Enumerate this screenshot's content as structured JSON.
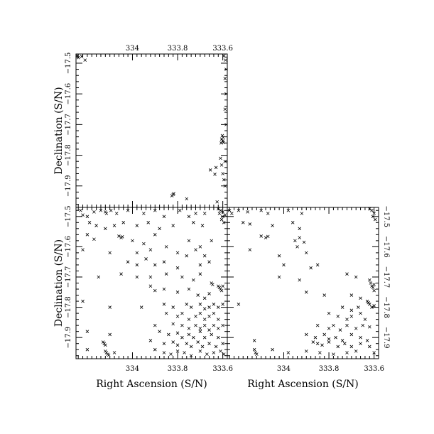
{
  "chart_data": [
    {
      "type": "scatter",
      "panel": "top-left",
      "xlabel": "",
      "ylabel": "Declination (S/N)",
      "x_axis_side": "top",
      "y_axis_side": "left",
      "xlim": [
        334.25,
        333.58
      ],
      "ylim": [
        -17.97,
        -17.47
      ],
      "xticks": [
        334,
        333.8,
        333.6
      ],
      "xtick_labels": [
        "334",
        "333.8",
        "333.6"
      ],
      "yticks": [
        -17.9,
        -17.8,
        -17.7,
        -17.6,
        -17.5
      ],
      "ytick_labels": [
        "−17.9",
        "−17.8",
        "−17.7",
        "−17.6",
        "−17.5"
      ],
      "marker": "x",
      "points": [
        [
          334.245,
          -17.475
        ],
        [
          334.24,
          -17.482
        ],
        [
          334.225,
          -17.478
        ],
        [
          334.21,
          -17.49
        ],
        [
          333.595,
          -17.476
        ],
        [
          333.588,
          -17.49
        ],
        [
          333.585,
          -17.52
        ],
        [
          333.59,
          -17.55
        ],
        [
          333.585,
          -17.6
        ],
        [
          333.59,
          -17.65
        ],
        [
          333.585,
          -17.7
        ],
        [
          333.605,
          -17.747
        ],
        [
          333.6,
          -17.753
        ],
        [
          333.598,
          -17.742
        ],
        [
          333.607,
          -17.76
        ],
        [
          333.602,
          -17.736
        ],
        [
          333.597,
          -17.758
        ],
        [
          333.61,
          -17.81
        ],
        [
          333.605,
          -17.832
        ],
        [
          333.63,
          -17.84
        ],
        [
          333.655,
          -17.848
        ],
        [
          333.635,
          -17.862
        ],
        [
          333.6,
          -17.86
        ],
        [
          333.595,
          -17.88
        ],
        [
          333.59,
          -17.82
        ],
        [
          333.59,
          -17.9
        ],
        [
          333.82,
          -17.928
        ],
        [
          333.825,
          -17.932
        ],
        [
          333.817,
          -17.925
        ],
        [
          333.76,
          -17.942
        ],
        [
          333.625,
          -17.952
        ]
      ]
    },
    {
      "type": "scatter",
      "panel": "bottom-left",
      "xlabel": "Right Ascension (S/N)",
      "ylabel": "Declination (S/N)",
      "x_axis_side": "bottom",
      "y_axis_side": "left",
      "xlim": [
        334.25,
        333.58
      ],
      "ylim": [
        -17.97,
        -17.47
      ],
      "xticks": [
        334,
        333.8,
        333.6
      ],
      "xtick_labels": [
        "334",
        "333.8",
        "333.6"
      ],
      "yticks": [
        -17.9,
        -17.8,
        -17.7,
        -17.6,
        -17.5
      ],
      "ytick_labels": [
        "−17.9",
        "−17.8",
        "−17.7",
        "−17.6",
        "−17.5"
      ],
      "marker": "x",
      "points": [
        [
          334.23,
          -17.48
        ],
        [
          334.22,
          -17.495
        ],
        [
          334.2,
          -17.5
        ],
        [
          334.17,
          -17.485
        ],
        [
          334.14,
          -17.48
        ],
        [
          334.12,
          -17.485
        ],
        [
          334.115,
          -17.49
        ],
        [
          334.095,
          -17.48
        ],
        [
          334.07,
          -17.49
        ],
        [
          334.02,
          -17.48
        ],
        [
          333.95,
          -17.49
        ],
        [
          333.9,
          -17.48
        ],
        [
          333.86,
          -17.5
        ],
        [
          333.79,
          -17.48
        ],
        [
          333.75,
          -17.5
        ],
        [
          333.72,
          -17.49
        ],
        [
          333.68,
          -17.49
        ],
        [
          333.62,
          -17.475
        ],
        [
          333.61,
          -17.48
        ],
        [
          333.6,
          -17.485
        ],
        [
          333.615,
          -17.49
        ],
        [
          333.6,
          -17.5
        ],
        [
          333.59,
          -17.495
        ],
        [
          333.605,
          -17.51
        ],
        [
          333.595,
          -17.52
        ],
        [
          334.19,
          -17.52
        ],
        [
          334.16,
          -17.53
        ],
        [
          334.12,
          -17.54
        ],
        [
          334.08,
          -17.53
        ],
        [
          334.04,
          -17.52
        ],
        [
          333.98,
          -17.53
        ],
        [
          333.93,
          -17.52
        ],
        [
          333.88,
          -17.54
        ],
        [
          333.82,
          -17.53
        ],
        [
          333.73,
          -17.52
        ],
        [
          333.69,
          -17.53
        ],
        [
          334.2,
          -17.56
        ],
        [
          334.17,
          -17.575
        ],
        [
          334.06,
          -17.565
        ],
        [
          334.05,
          -17.57
        ],
        [
          334.045,
          -17.567
        ],
        [
          334.0,
          -17.58
        ],
        [
          333.95,
          -17.59
        ],
        [
          333.9,
          -17.56
        ],
        [
          333.85,
          -17.6
        ],
        [
          333.75,
          -17.58
        ],
        [
          333.7,
          -17.6
        ],
        [
          333.65,
          -17.58
        ],
        [
          334.22,
          -17.61
        ],
        [
          334.1,
          -17.62
        ],
        [
          333.98,
          -17.62
        ],
        [
          333.92,
          -17.61
        ],
        [
          333.8,
          -17.62
        ],
        [
          333.76,
          -17.63
        ],
        [
          333.72,
          -17.61
        ],
        [
          333.68,
          -17.63
        ],
        [
          334.02,
          -17.65
        ],
        [
          333.98,
          -17.66
        ],
        [
          333.94,
          -17.64
        ],
        [
          333.9,
          -17.66
        ],
        [
          333.86,
          -17.65
        ],
        [
          333.8,
          -17.67
        ],
        [
          333.7,
          -17.66
        ],
        [
          333.66,
          -17.65
        ],
        [
          334.15,
          -17.7
        ],
        [
          334.05,
          -17.69
        ],
        [
          333.98,
          -17.7
        ],
        [
          333.92,
          -17.7
        ],
        [
          333.85,
          -17.69
        ],
        [
          333.78,
          -17.7
        ],
        [
          333.73,
          -17.71
        ],
        [
          333.7,
          -17.69
        ],
        [
          333.65,
          -17.72
        ],
        [
          333.645,
          -17.725
        ],
        [
          333.62,
          -17.73
        ],
        [
          333.615,
          -17.735
        ],
        [
          333.61,
          -17.74
        ],
        [
          333.605,
          -17.745
        ],
        [
          333.6,
          -17.73
        ],
        [
          333.92,
          -17.73
        ],
        [
          333.9,
          -17.745
        ],
        [
          333.86,
          -17.74
        ],
        [
          333.8,
          -17.75
        ],
        [
          333.75,
          -17.74
        ],
        [
          333.71,
          -17.76
        ],
        [
          333.68,
          -17.77
        ],
        [
          333.66,
          -17.755
        ],
        [
          334.22,
          -17.78
        ],
        [
          334.1,
          -17.8
        ],
        [
          333.96,
          -17.8
        ],
        [
          333.86,
          -17.79
        ],
        [
          333.82,
          -17.8
        ],
        [
          333.76,
          -17.79
        ],
        [
          333.74,
          -17.8
        ],
        [
          333.7,
          -17.79
        ],
        [
          333.68,
          -17.805
        ],
        [
          333.66,
          -17.8
        ],
        [
          333.64,
          -17.79
        ],
        [
          333.62,
          -17.8
        ],
        [
          333.6,
          -17.79
        ],
        [
          333.85,
          -17.82
        ],
        [
          333.8,
          -17.83
        ],
        [
          333.78,
          -17.82
        ],
        [
          333.75,
          -17.84
        ],
        [
          333.72,
          -17.83
        ],
        [
          333.7,
          -17.82
        ],
        [
          333.68,
          -17.84
        ],
        [
          333.66,
          -17.83
        ],
        [
          333.64,
          -17.82
        ],
        [
          333.62,
          -17.84
        ],
        [
          333.9,
          -17.86
        ],
        [
          333.82,
          -17.855
        ],
        [
          333.78,
          -17.86
        ],
        [
          333.75,
          -17.87
        ],
        [
          333.72,
          -17.86
        ],
        [
          333.7,
          -17.87
        ],
        [
          333.68,
          -17.86
        ],
        [
          333.66,
          -17.875
        ],
        [
          333.64,
          -17.86
        ],
        [
          333.62,
          -17.87
        ],
        [
          333.6,
          -17.86
        ],
        [
          334.2,
          -17.88
        ],
        [
          334.1,
          -17.89
        ],
        [
          333.88,
          -17.88
        ],
        [
          333.84,
          -17.89
        ],
        [
          333.8,
          -17.885
        ],
        [
          333.78,
          -17.9
        ],
        [
          333.75,
          -17.89
        ],
        [
          333.73,
          -17.9
        ],
        [
          333.7,
          -17.88
        ],
        [
          333.68,
          -17.9
        ],
        [
          333.65,
          -17.89
        ],
        [
          333.62,
          -17.9
        ],
        [
          334.13,
          -17.915
        ],
        [
          334.125,
          -17.92
        ],
        [
          334.12,
          -17.925
        ],
        [
          333.92,
          -17.91
        ],
        [
          333.86,
          -17.92
        ],
        [
          333.82,
          -17.915
        ],
        [
          333.8,
          -17.925
        ],
        [
          333.76,
          -17.92
        ],
        [
          333.74,
          -17.93
        ],
        [
          333.71,
          -17.915
        ],
        [
          333.69,
          -17.93
        ],
        [
          333.66,
          -17.92
        ],
        [
          333.63,
          -17.93
        ],
        [
          333.6,
          -17.92
        ],
        [
          334.2,
          -17.94
        ],
        [
          334.12,
          -17.945
        ],
        [
          334.115,
          -17.95
        ],
        [
          334.11,
          -17.955
        ],
        [
          334.105,
          -17.958
        ],
        [
          334.08,
          -17.95
        ],
        [
          333.9,
          -17.94
        ],
        [
          333.86,
          -17.95
        ],
        [
          333.83,
          -17.955
        ],
        [
          333.8,
          -17.945
        ],
        [
          333.77,
          -17.95
        ],
        [
          333.74,
          -17.96
        ],
        [
          333.7,
          -17.945
        ],
        [
          333.67,
          -17.955
        ],
        [
          333.64,
          -17.95
        ],
        [
          333.61,
          -17.945
        ],
        [
          333.595,
          -17.955
        ]
      ]
    },
    {
      "type": "scatter",
      "panel": "bottom-right",
      "xlabel": "Right Ascension (S/N)",
      "ylabel": "",
      "x_axis_side": "bottom",
      "y_axis_side": "right",
      "xlim": [
        334.25,
        333.58
      ],
      "ylim": [
        -17.97,
        -17.47
      ],
      "xticks": [
        334,
        333.8,
        333.6
      ],
      "xtick_labels": [
        "334",
        "333.8",
        "333.6"
      ],
      "yticks": [
        -17.9,
        -17.8,
        -17.7,
        -17.6,
        -17.5
      ],
      "ytick_labels": [
        "−17.9",
        "−17.8",
        "−17.7",
        "−17.6",
        "−17.5"
      ],
      "marker": "x",
      "points": [
        [
          334.24,
          -17.48
        ],
        [
          334.23,
          -17.49
        ],
        [
          334.2,
          -17.48
        ],
        [
          334.16,
          -17.485
        ],
        [
          334.1,
          -17.48
        ],
        [
          334.07,
          -17.49
        ],
        [
          333.98,
          -17.48
        ],
        [
          333.92,
          -17.49
        ],
        [
          333.62,
          -17.475
        ],
        [
          333.61,
          -17.48
        ],
        [
          333.6,
          -17.49
        ],
        [
          333.605,
          -17.5
        ],
        [
          333.595,
          -17.51
        ],
        [
          334.18,
          -17.52
        ],
        [
          334.15,
          -17.525
        ],
        [
          334.05,
          -17.53
        ],
        [
          333.96,
          -17.52
        ],
        [
          333.93,
          -17.54
        ],
        [
          334.1,
          -17.565
        ],
        [
          334.08,
          -17.57
        ],
        [
          334.07,
          -17.566
        ],
        [
          333.95,
          -17.58
        ],
        [
          333.93,
          -17.57
        ],
        [
          333.91,
          -17.585
        ],
        [
          334.15,
          -17.61
        ],
        [
          334.02,
          -17.63
        ],
        [
          333.94,
          -17.6
        ],
        [
          333.9,
          -17.62
        ],
        [
          334.0,
          -17.66
        ],
        [
          333.88,
          -17.67
        ],
        [
          333.85,
          -17.66
        ],
        [
          334.02,
          -17.7
        ],
        [
          333.93,
          -17.71
        ],
        [
          333.72,
          -17.69
        ],
        [
          333.68,
          -17.7
        ],
        [
          333.62,
          -17.71
        ],
        [
          333.615,
          -17.72
        ],
        [
          333.61,
          -17.73
        ],
        [
          333.605,
          -17.735
        ],
        [
          333.6,
          -17.745
        ],
        [
          333.6,
          -17.725
        ],
        [
          333.9,
          -17.75
        ],
        [
          333.82,
          -17.76
        ],
        [
          333.7,
          -17.76
        ],
        [
          333.66,
          -17.77
        ],
        [
          333.63,
          -17.78
        ],
        [
          333.625,
          -17.785
        ],
        [
          333.62,
          -17.79
        ],
        [
          333.61,
          -17.8
        ],
        [
          333.6,
          -17.795
        ],
        [
          333.74,
          -17.8
        ],
        [
          333.7,
          -17.81
        ],
        [
          333.67,
          -17.8
        ],
        [
          334.2,
          -17.79
        ],
        [
          333.8,
          -17.82
        ],
        [
          333.76,
          -17.83
        ],
        [
          333.72,
          -17.84
        ],
        [
          333.7,
          -17.83
        ],
        [
          333.66,
          -17.82
        ],
        [
          333.64,
          -17.84
        ],
        [
          333.85,
          -17.86
        ],
        [
          333.8,
          -17.87
        ],
        [
          333.78,
          -17.86
        ],
        [
          333.75,
          -17.875
        ],
        [
          333.72,
          -17.86
        ],
        [
          333.68,
          -17.87
        ],
        [
          333.65,
          -17.86
        ],
        [
          333.62,
          -17.865
        ],
        [
          333.9,
          -17.89
        ],
        [
          333.86,
          -17.9
        ],
        [
          333.82,
          -17.89
        ],
        [
          333.8,
          -17.905
        ],
        [
          333.77,
          -17.9
        ],
        [
          333.74,
          -17.91
        ],
        [
          333.7,
          -17.89
        ],
        [
          333.66,
          -17.9
        ],
        [
          333.63,
          -17.91
        ],
        [
          334.13,
          -17.91
        ],
        [
          333.87,
          -17.915
        ],
        [
          333.85,
          -17.92
        ],
        [
          333.83,
          -17.925
        ],
        [
          333.8,
          -17.915
        ],
        [
          333.76,
          -17.93
        ],
        [
          333.73,
          -17.92
        ],
        [
          333.7,
          -17.93
        ],
        [
          333.66,
          -17.92
        ],
        [
          333.62,
          -17.93
        ],
        [
          334.13,
          -17.94
        ],
        [
          334.125,
          -17.95
        ],
        [
          334.12,
          -17.955
        ],
        [
          334.05,
          -17.94
        ],
        [
          333.98,
          -17.95
        ],
        [
          333.9,
          -17.945
        ],
        [
          333.84,
          -17.95
        ],
        [
          333.78,
          -17.955
        ],
        [
          333.72,
          -17.95
        ],
        [
          333.68,
          -17.945
        ],
        [
          333.6,
          -17.95
        ]
      ]
    }
  ]
}
